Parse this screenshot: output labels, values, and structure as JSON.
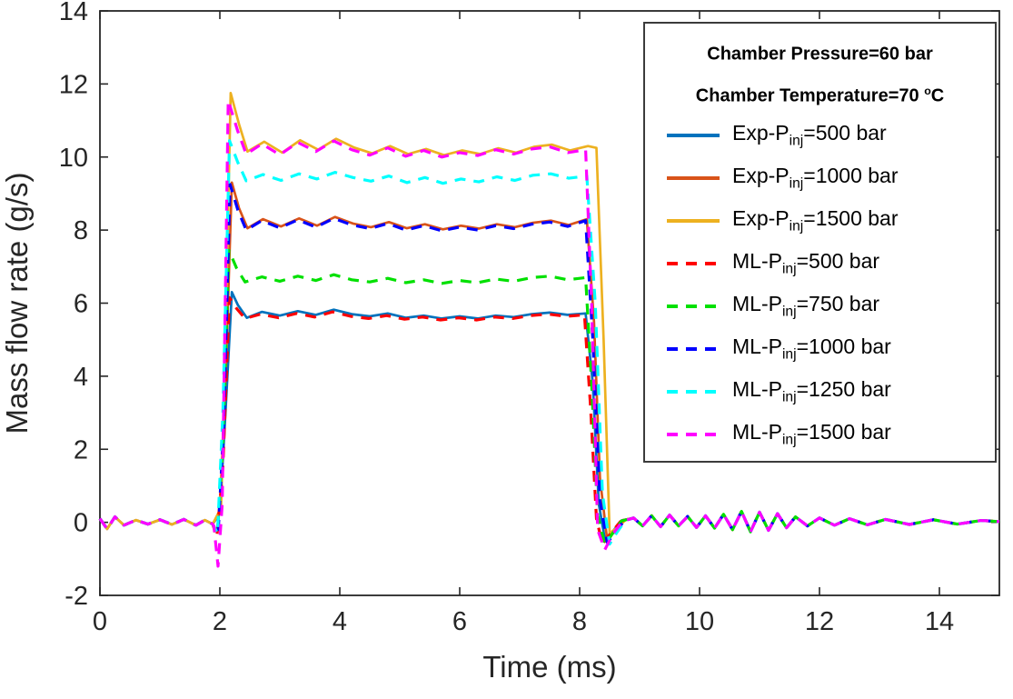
{
  "figure": {
    "axis_color": "#262626",
    "background": "#ffffff"
  },
  "legend": {
    "headers": [
      {
        "pre": "Chamber Pressure=60 bar",
        "sup": "",
        "post": ""
      },
      {
        "pre": "Chamber Temperature=70 ",
        "sup": "o",
        "post": "C"
      }
    ],
    "entries": [
      {
        "pre": "Exp-P",
        "sub": "inj",
        "post": "=500 bar",
        "color": "#0072BD",
        "style": "solid"
      },
      {
        "pre": "Exp-P",
        "sub": "inj",
        "post": "=1000 bar",
        "color": "#D95319",
        "style": "solid"
      },
      {
        "pre": "Exp-P",
        "sub": "inj",
        "post": "=1500 bar",
        "color": "#EDB120",
        "style": "solid"
      },
      {
        "pre": "ML-P",
        "sub": "inj",
        "post": "=500 bar",
        "color": "#FF0000",
        "style": "dashed"
      },
      {
        "pre": "ML-P",
        "sub": "inj",
        "post": "=750 bar",
        "color": "#00E000",
        "style": "dashed"
      },
      {
        "pre": "ML-P",
        "sub": "inj",
        "post": "=1000 bar",
        "color": "#0000FF",
        "style": "dashed"
      },
      {
        "pre": "ML-P",
        "sub": "inj",
        "post": "=1250 bar",
        "color": "#00FFFF",
        "style": "dashed"
      },
      {
        "pre": "ML-P",
        "sub": "inj",
        "post": "=1500 bar",
        "color": "#FF00FF",
        "style": "dashed"
      }
    ]
  },
  "chart_data": {
    "type": "line",
    "title": "",
    "xlabel": "Time (ms)",
    "ylabel": "Mass flow rate (g/s)",
    "xlim": [
      0,
      15
    ],
    "ylim": [
      -2,
      14
    ],
    "xticks": [
      0,
      2,
      4,
      6,
      8,
      10,
      12,
      14
    ],
    "yticks": [
      -2,
      0,
      2,
      4,
      6,
      8,
      10,
      12,
      14
    ],
    "grid": false,
    "legend_position": "top-right",
    "pulse": {
      "start_ms": 2.0,
      "end_ms": 8.2
    },
    "baseline_points": [
      [
        0,
        0.1
      ],
      [
        0.12,
        -0.18
      ],
      [
        0.25,
        0.15
      ],
      [
        0.4,
        -0.08
      ],
      [
        0.6,
        0.06
      ],
      [
        0.8,
        -0.05
      ],
      [
        1.0,
        0.07
      ],
      [
        1.2,
        -0.06
      ],
      [
        1.4,
        0.08
      ],
      [
        1.6,
        -0.08
      ],
      [
        1.75,
        0.06
      ],
      [
        1.88,
        -0.05
      ]
    ],
    "tail_points": [
      [
        8.9,
        0.12
      ],
      [
        9.05,
        -0.1
      ],
      [
        9.2,
        0.18
      ],
      [
        9.35,
        -0.12
      ],
      [
        9.5,
        0.2
      ],
      [
        9.65,
        -0.1
      ],
      [
        9.8,
        0.16
      ],
      [
        9.95,
        -0.14
      ],
      [
        10.1,
        0.18
      ],
      [
        10.25,
        -0.16
      ],
      [
        10.4,
        0.22
      ],
      [
        10.55,
        -0.2
      ],
      [
        10.7,
        0.3
      ],
      [
        10.85,
        -0.26
      ],
      [
        11.0,
        0.28
      ],
      [
        11.15,
        -0.22
      ],
      [
        11.3,
        0.24
      ],
      [
        11.45,
        -0.15
      ],
      [
        11.6,
        0.15
      ],
      [
        11.8,
        -0.1
      ],
      [
        12.0,
        0.12
      ],
      [
        12.25,
        -0.08
      ],
      [
        12.5,
        0.1
      ],
      [
        12.8,
        -0.07
      ],
      [
        13.1,
        0.08
      ],
      [
        13.5,
        -0.06
      ],
      [
        13.9,
        0.07
      ],
      [
        14.3,
        -0.05
      ],
      [
        14.7,
        0.05
      ],
      [
        15,
        0.02
      ]
    ],
    "series": [
      {
        "name": "Exp-Pinj=500 bar",
        "color": "#0072BD",
        "style": "solid",
        "plateau": 5.7,
        "peak": 6.3,
        "points": [
          [
            2.0,
            0.25
          ],
          [
            2.1,
            3.2
          ],
          [
            2.2,
            6.3
          ],
          [
            2.3,
            5.95
          ],
          [
            2.45,
            5.6
          ],
          [
            2.7,
            5.76
          ],
          [
            3.0,
            5.66
          ],
          [
            3.3,
            5.78
          ],
          [
            3.6,
            5.68
          ],
          [
            3.9,
            5.82
          ],
          [
            4.2,
            5.7
          ],
          [
            4.5,
            5.64
          ],
          [
            4.8,
            5.72
          ],
          [
            5.1,
            5.6
          ],
          [
            5.4,
            5.66
          ],
          [
            5.7,
            5.58
          ],
          [
            6.0,
            5.64
          ],
          [
            6.3,
            5.58
          ],
          [
            6.6,
            5.66
          ],
          [
            6.9,
            5.62
          ],
          [
            7.2,
            5.7
          ],
          [
            7.5,
            5.74
          ],
          [
            7.8,
            5.68
          ],
          [
            8.1,
            5.72
          ],
          [
            8.22,
            3.8
          ],
          [
            8.32,
            0.5
          ],
          [
            8.42,
            -0.45
          ],
          [
            8.55,
            -0.25
          ],
          [
            8.7,
            0.05
          ]
        ]
      },
      {
        "name": "Exp-Pinj=1000 bar",
        "color": "#D95319",
        "style": "solid",
        "plateau": 8.15,
        "peak": 9.3,
        "points": [
          [
            2.0,
            0.3
          ],
          [
            2.1,
            4.2
          ],
          [
            2.2,
            9.3
          ],
          [
            2.32,
            8.6
          ],
          [
            2.46,
            8.05
          ],
          [
            2.72,
            8.3
          ],
          [
            3.02,
            8.1
          ],
          [
            3.32,
            8.32
          ],
          [
            3.62,
            8.12
          ],
          [
            3.92,
            8.36
          ],
          [
            4.22,
            8.18
          ],
          [
            4.52,
            8.08
          ],
          [
            4.82,
            8.22
          ],
          [
            5.12,
            8.05
          ],
          [
            5.42,
            8.16
          ],
          [
            5.72,
            8.02
          ],
          [
            6.02,
            8.12
          ],
          [
            6.32,
            8.04
          ],
          [
            6.62,
            8.16
          ],
          [
            6.92,
            8.08
          ],
          [
            7.22,
            8.2
          ],
          [
            7.52,
            8.26
          ],
          [
            7.82,
            8.14
          ],
          [
            8.12,
            8.3
          ],
          [
            8.24,
            5.5
          ],
          [
            8.34,
            1.2
          ],
          [
            8.46,
            -0.5
          ],
          [
            8.58,
            -0.25
          ],
          [
            8.72,
            0.06
          ]
        ]
      },
      {
        "name": "Exp-Pinj=1500 bar",
        "color": "#EDB120",
        "style": "solid",
        "plateau": 10.2,
        "peak": 11.75,
        "points": [
          [
            2.02,
            0.4
          ],
          [
            2.1,
            5.5
          ],
          [
            2.18,
            11.75
          ],
          [
            2.32,
            10.9
          ],
          [
            2.46,
            10.15
          ],
          [
            2.74,
            10.42
          ],
          [
            3.04,
            10.12
          ],
          [
            3.34,
            10.46
          ],
          [
            3.64,
            10.2
          ],
          [
            3.94,
            10.5
          ],
          [
            4.24,
            10.26
          ],
          [
            4.54,
            10.1
          ],
          [
            4.84,
            10.3
          ],
          [
            5.14,
            10.08
          ],
          [
            5.44,
            10.22
          ],
          [
            5.74,
            10.05
          ],
          [
            6.04,
            10.18
          ],
          [
            6.34,
            10.08
          ],
          [
            6.64,
            10.24
          ],
          [
            6.94,
            10.12
          ],
          [
            7.24,
            10.28
          ],
          [
            7.54,
            10.34
          ],
          [
            7.84,
            10.18
          ],
          [
            8.14,
            10.3
          ],
          [
            8.28,
            10.25
          ],
          [
            8.4,
            5.0
          ],
          [
            8.5,
            -0.3
          ],
          [
            8.62,
            -0.15
          ],
          [
            8.78,
            0.08
          ]
        ]
      },
      {
        "name": "ML-Pinj=500 bar",
        "color": "#FF0000",
        "style": "dashed",
        "plateau": 5.65,
        "peak": 6.15,
        "points": [
          [
            1.95,
            -0.4
          ],
          [
            2.05,
            1.5
          ],
          [
            2.16,
            6.15
          ],
          [
            2.28,
            5.85
          ],
          [
            2.42,
            5.58
          ],
          [
            2.68,
            5.7
          ],
          [
            2.98,
            5.6
          ],
          [
            3.28,
            5.72
          ],
          [
            3.58,
            5.62
          ],
          [
            3.88,
            5.76
          ],
          [
            4.18,
            5.64
          ],
          [
            4.48,
            5.58
          ],
          [
            4.78,
            5.66
          ],
          [
            5.08,
            5.56
          ],
          [
            5.38,
            5.62
          ],
          [
            5.68,
            5.54
          ],
          [
            5.98,
            5.6
          ],
          [
            6.28,
            5.54
          ],
          [
            6.58,
            5.62
          ],
          [
            6.88,
            5.58
          ],
          [
            7.18,
            5.66
          ],
          [
            7.48,
            5.7
          ],
          [
            7.78,
            5.64
          ],
          [
            8.08,
            5.68
          ],
          [
            8.18,
            3.2
          ],
          [
            8.28,
            0.1
          ],
          [
            8.38,
            -0.6
          ],
          [
            8.52,
            -0.3
          ],
          [
            8.68,
            0.02
          ]
        ]
      },
      {
        "name": "ML-Pinj=750 bar",
        "color": "#00E000",
        "style": "dashed",
        "plateau": 6.65,
        "peak": 7.45,
        "points": [
          [
            1.96,
            -0.3
          ],
          [
            2.05,
            2.2
          ],
          [
            2.15,
            7.45
          ],
          [
            2.28,
            6.95
          ],
          [
            2.42,
            6.58
          ],
          [
            2.7,
            6.72
          ],
          [
            3.0,
            6.6
          ],
          [
            3.3,
            6.74
          ],
          [
            3.6,
            6.62
          ],
          [
            3.9,
            6.78
          ],
          [
            4.2,
            6.64
          ],
          [
            4.5,
            6.58
          ],
          [
            4.8,
            6.68
          ],
          [
            5.1,
            6.56
          ],
          [
            5.4,
            6.64
          ],
          [
            5.7,
            6.54
          ],
          [
            6.0,
            6.62
          ],
          [
            6.3,
            6.56
          ],
          [
            6.6,
            6.66
          ],
          [
            6.9,
            6.6
          ],
          [
            7.2,
            6.7
          ],
          [
            7.5,
            6.74
          ],
          [
            7.8,
            6.64
          ],
          [
            8.1,
            6.7
          ],
          [
            8.2,
            3.8
          ],
          [
            8.3,
            0.2
          ],
          [
            8.42,
            -0.62
          ],
          [
            8.55,
            -0.3
          ],
          [
            8.7,
            0.04
          ]
        ]
      },
      {
        "name": "ML-Pinj=1000 bar",
        "color": "#0000FF",
        "style": "dashed",
        "plateau": 8.1,
        "peak": 9.25,
        "points": [
          [
            1.97,
            -0.35
          ],
          [
            2.06,
            2.5
          ],
          [
            2.17,
            9.25
          ],
          [
            2.3,
            8.55
          ],
          [
            2.44,
            8.0
          ],
          [
            2.7,
            8.26
          ],
          [
            3.0,
            8.06
          ],
          [
            3.3,
            8.28
          ],
          [
            3.6,
            8.08
          ],
          [
            3.9,
            8.32
          ],
          [
            4.2,
            8.14
          ],
          [
            4.5,
            8.04
          ],
          [
            4.8,
            8.18
          ],
          [
            5.1,
            8.0
          ],
          [
            5.4,
            8.12
          ],
          [
            5.7,
            7.98
          ],
          [
            6.0,
            8.08
          ],
          [
            6.3,
            8.0
          ],
          [
            6.6,
            8.12
          ],
          [
            6.9,
            8.04
          ],
          [
            7.2,
            8.16
          ],
          [
            7.5,
            8.22
          ],
          [
            7.8,
            8.1
          ],
          [
            8.1,
            8.26
          ],
          [
            8.22,
            5.0
          ],
          [
            8.34,
            0.6
          ],
          [
            8.46,
            -0.55
          ],
          [
            8.6,
            -0.28
          ],
          [
            8.74,
            0.04
          ]
        ]
      },
      {
        "name": "ML-Pinj=1250 bar",
        "color": "#00FFFF",
        "style": "dashed",
        "plateau": 9.45,
        "peak": 10.45,
        "points": [
          [
            1.96,
            -0.3
          ],
          [
            2.05,
            3.0
          ],
          [
            2.16,
            10.45
          ],
          [
            2.3,
            9.85
          ],
          [
            2.44,
            9.35
          ],
          [
            2.72,
            9.52
          ],
          [
            3.02,
            9.36
          ],
          [
            3.32,
            9.54
          ],
          [
            3.62,
            9.4
          ],
          [
            3.92,
            9.58
          ],
          [
            4.22,
            9.44
          ],
          [
            4.52,
            9.34
          ],
          [
            4.82,
            9.48
          ],
          [
            5.12,
            9.3
          ],
          [
            5.42,
            9.44
          ],
          [
            5.72,
            9.28
          ],
          [
            6.02,
            9.4
          ],
          [
            6.32,
            9.32
          ],
          [
            6.62,
            9.46
          ],
          [
            6.92,
            9.36
          ],
          [
            7.22,
            9.5
          ],
          [
            7.52,
            9.54
          ],
          [
            7.82,
            9.42
          ],
          [
            8.12,
            9.48
          ],
          [
            8.26,
            6.0
          ],
          [
            8.38,
            0.8
          ],
          [
            8.5,
            -0.6
          ],
          [
            8.62,
            -0.28
          ],
          [
            8.76,
            0.05
          ]
        ]
      },
      {
        "name": "ML-Pinj=1500 bar",
        "color": "#FF00FF",
        "style": "dashed",
        "plateau": 10.15,
        "peak": 11.55,
        "points": [
          [
            1.9,
            -0.1
          ],
          [
            1.97,
            -1.2
          ],
          [
            2.04,
            0.5
          ],
          [
            2.14,
            11.55
          ],
          [
            2.3,
            10.7
          ],
          [
            2.44,
            10.08
          ],
          [
            2.7,
            10.36
          ],
          [
            3.0,
            10.06
          ],
          [
            3.3,
            10.4
          ],
          [
            3.6,
            10.15
          ],
          [
            3.9,
            10.44
          ],
          [
            4.2,
            10.2
          ],
          [
            4.5,
            10.05
          ],
          [
            4.8,
            10.25
          ],
          [
            5.1,
            10.02
          ],
          [
            5.4,
            10.18
          ],
          [
            5.7,
            10.0
          ],
          [
            6.0,
            10.12
          ],
          [
            6.3,
            10.04
          ],
          [
            6.6,
            10.2
          ],
          [
            6.9,
            10.08
          ],
          [
            7.2,
            10.22
          ],
          [
            7.5,
            10.28
          ],
          [
            7.8,
            10.12
          ],
          [
            8.1,
            10.2
          ],
          [
            8.2,
            6.0
          ],
          [
            8.3,
            -0.2
          ],
          [
            8.42,
            -0.75
          ],
          [
            8.56,
            -0.3
          ],
          [
            8.72,
            0.03
          ]
        ]
      }
    ]
  }
}
